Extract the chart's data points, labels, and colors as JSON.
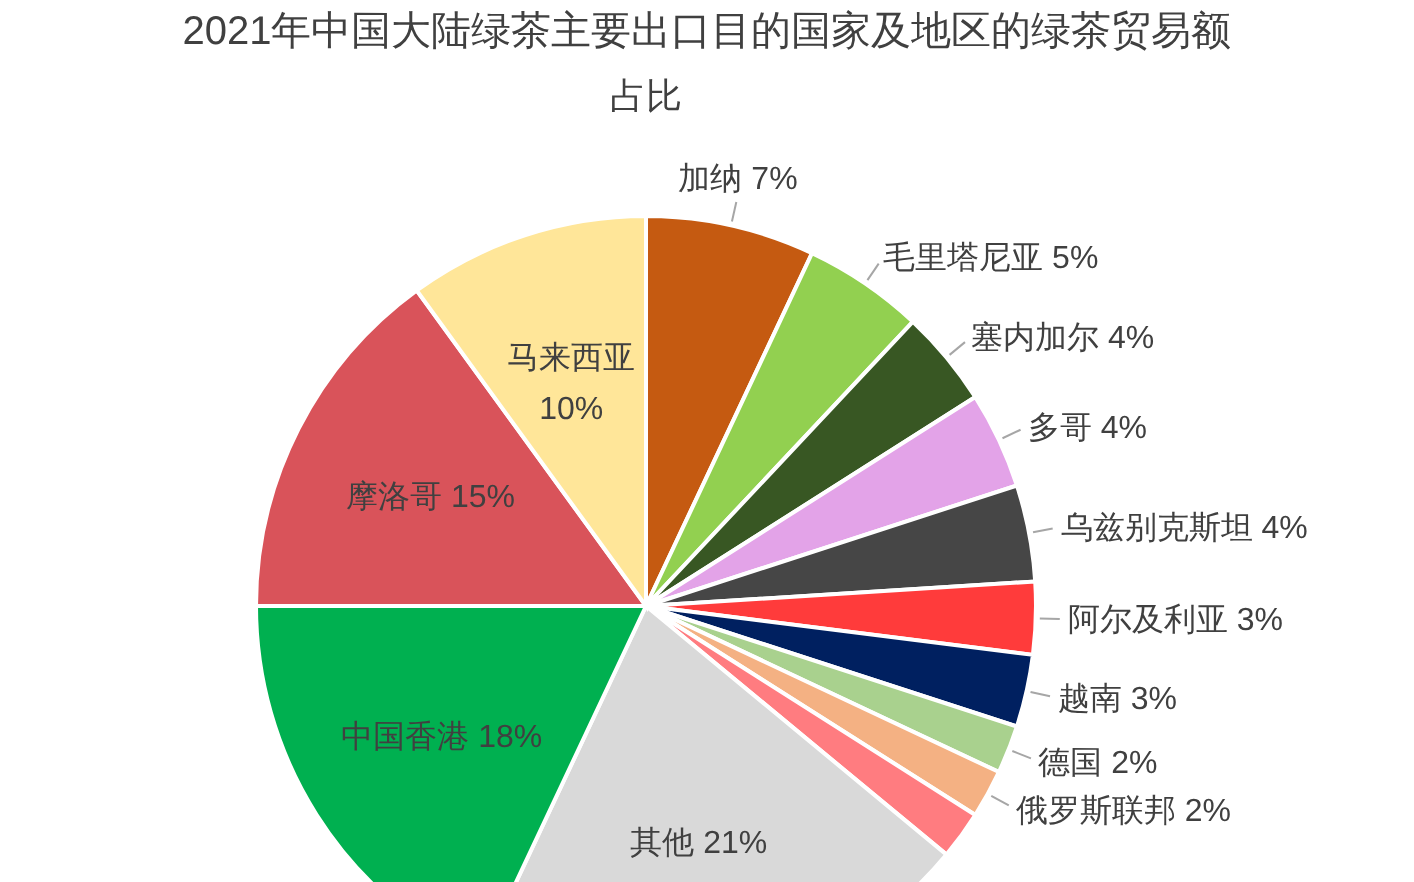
{
  "chart_data": {
    "type": "pie",
    "title": "2021年中国大陆绿茶主要出口目的国家及地区的绿茶贸易额",
    "subtitle": "占比",
    "categories": [
      "加纳",
      "毛里塔尼亚",
      "塞内加尔",
      "多哥",
      "乌兹别克斯坦",
      "阿尔及利亚",
      "越南",
      "德国",
      "俄罗斯联邦",
      null,
      "其他",
      "中国香港",
      "摩洛哥",
      "马来西亚"
    ],
    "values": [
      7,
      5,
      4,
      4,
      4,
      3,
      3,
      2,
      2,
      2,
      21,
      18,
      15,
      10
    ],
    "colors": [
      "#c55a11",
      "#92d050",
      "#385723",
      "#e3a3e8",
      "#464646",
      "#ff3b3b",
      "#002060",
      "#a9d18e",
      "#f4b183",
      "#ff7c80",
      "#d9d9d9",
      "#00b050",
      "#d9535a",
      "#ffe699"
    ],
    "value_labels": [
      "7%",
      "5%",
      "4%",
      "4%",
      "4%",
      "3%",
      "3%",
      "2%",
      "2%",
      null,
      "21%",
      "18%",
      "15%",
      "10%"
    ]
  }
}
